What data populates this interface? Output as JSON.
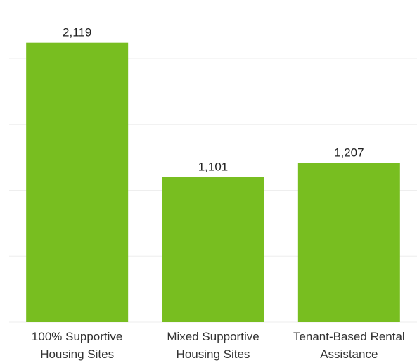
{
  "chart_data": {
    "type": "bar",
    "categories": [
      "100% Supportive Housing Sites",
      "Mixed Supportive Housing Sites",
      "Tenant-Based Rental Assistance"
    ],
    "values": [
      2119,
      1101,
      1207
    ],
    "value_labels": [
      "2,119",
      "1,101",
      "1,207"
    ],
    "color": "#78be20",
    "ylim": [
      0,
      2400
    ],
    "yticks": [
      0,
      500,
      1000,
      1500,
      2000
    ],
    "grid": true
  }
}
